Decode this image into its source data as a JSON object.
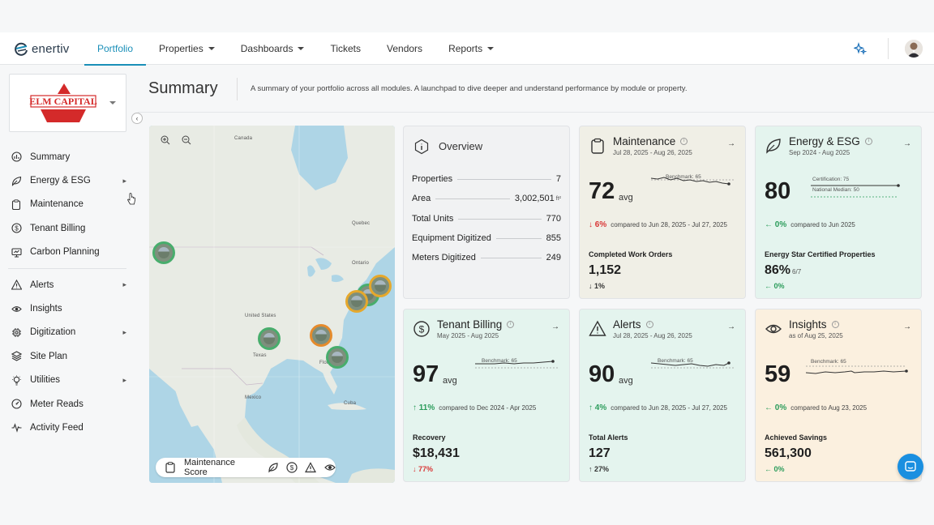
{
  "app": {
    "logo_text": "enertiv"
  },
  "nav": {
    "items": [
      {
        "label": "Portfolio",
        "active": true,
        "dropdown": false
      },
      {
        "label": "Properties",
        "active": false,
        "dropdown": true
      },
      {
        "label": "Dashboards",
        "active": false,
        "dropdown": true
      },
      {
        "label": "Tickets",
        "active": false,
        "dropdown": false
      },
      {
        "label": "Vendors",
        "active": false,
        "dropdown": false
      },
      {
        "label": "Reports",
        "active": false,
        "dropdown": true
      }
    ]
  },
  "brand": {
    "name": "ELM CAPITAL",
    "color": "#d42a2a"
  },
  "sidebar": {
    "groups": [
      [
        {
          "label": "Summary",
          "icon": "chart-icon",
          "chevron": false
        },
        {
          "label": "Energy & ESG",
          "icon": "leaf-icon",
          "chevron": true
        },
        {
          "label": "Maintenance",
          "icon": "clipboard-icon",
          "chevron": false
        },
        {
          "label": "Tenant Billing",
          "icon": "dollar-icon",
          "chevron": false
        },
        {
          "label": "Carbon Planning",
          "icon": "monitor-icon",
          "chevron": false
        }
      ],
      [
        {
          "label": "Alerts",
          "icon": "alert-icon",
          "chevron": true
        },
        {
          "label": "Insights",
          "icon": "eye-icon",
          "chevron": false
        },
        {
          "label": "Digitization",
          "icon": "chip-icon",
          "chevron": true
        },
        {
          "label": "Site Plan",
          "icon": "layers-icon",
          "chevron": false
        },
        {
          "label": "Utilities",
          "icon": "bulb-icon",
          "chevron": true
        },
        {
          "label": "Meter Reads",
          "icon": "gauge-icon",
          "chevron": false
        },
        {
          "label": "Activity Feed",
          "icon": "pulse-icon",
          "chevron": false
        }
      ]
    ]
  },
  "header": {
    "title": "Summary",
    "subtitle": "A summary of your portfolio across all modules. A launchpad to dive deeper and understand performance by module or property."
  },
  "map": {
    "labels": {
      "canada": "Canada",
      "united_states": "United States",
      "mexico": "Mexico",
      "ontario": "Ontario",
      "quebec": "Quebec",
      "texas": "Texas",
      "florida": "Florida",
      "cuba": "Cuba"
    },
    "toolbar_label": "Maintenance Score"
  },
  "overview": {
    "title": "Overview",
    "rows": [
      {
        "label": "Properties",
        "value": "7",
        "unit": ""
      },
      {
        "label": "Area",
        "value": "3,002,501",
        "unit": "ft²"
      },
      {
        "label": "Total Units",
        "value": "770",
        "unit": ""
      },
      {
        "label": "Equipment Digitized",
        "value": "855",
        "unit": ""
      },
      {
        "label": "Meters Digitized",
        "value": "249",
        "unit": ""
      }
    ]
  },
  "cards": {
    "maintenance": {
      "title": "Maintenance",
      "dates": "Jul 28, 2025 - Aug 26, 2025",
      "score": "72",
      "avg": "avg",
      "benchmark": "Benchmark: 65",
      "change": "6%",
      "change_dir": "down",
      "compare": "compared to Jun 28, 2025 - Jul 27, 2025",
      "sub_label": "Completed Work Orders",
      "sub_value": "1,152",
      "sub_change": "1%",
      "sub_dir": "down-neutral"
    },
    "energy": {
      "title": "Energy & ESG",
      "dates": "Sep 2024 - Aug 2025",
      "score": "80",
      "certification": "Certification: 75",
      "national_median": "National Median: 50",
      "change": "0%",
      "compare": "compared to Jun 2025",
      "sub_label": "Energy Star Certified Properties",
      "sub_value": "86%",
      "sub_small": "6/7",
      "sub_change": "0%"
    },
    "tenant": {
      "title": "Tenant Billing",
      "dates": "May 2025 - Aug 2025",
      "score": "97",
      "avg": "avg",
      "benchmark": "Benchmark: 65",
      "change": "11%",
      "compare": "compared to Dec 2024 - Apr 2025",
      "sub_label": "Recovery",
      "sub_value": "$18,431",
      "sub_change": "77%"
    },
    "alerts": {
      "title": "Alerts",
      "dates": "Jul 28, 2025 - Aug 26, 2025",
      "score": "90",
      "avg": "avg",
      "benchmark": "Benchmark: 65",
      "change": "4%",
      "compare": "compared to Jun 28, 2025 - Jul 27, 2025",
      "sub_label": "Total Alerts",
      "sub_value": "127",
      "sub_change": "27%"
    },
    "insights": {
      "title": "Insights",
      "dates": "as of Aug 25, 2025",
      "score": "59",
      "benchmark": "Benchmark: 65",
      "change": "0%",
      "compare": "compared to Aug 23, 2025",
      "sub_label": "Achieved Savings",
      "sub_value": "561,300",
      "sub_change": "0%"
    }
  },
  "colors": {
    "accent": "#1a8fb8",
    "up": "#2b9c5b",
    "down": "#d93636",
    "beige": "#f0efe6",
    "green": "#e4f4ee",
    "peach": "#fbf0df"
  }
}
